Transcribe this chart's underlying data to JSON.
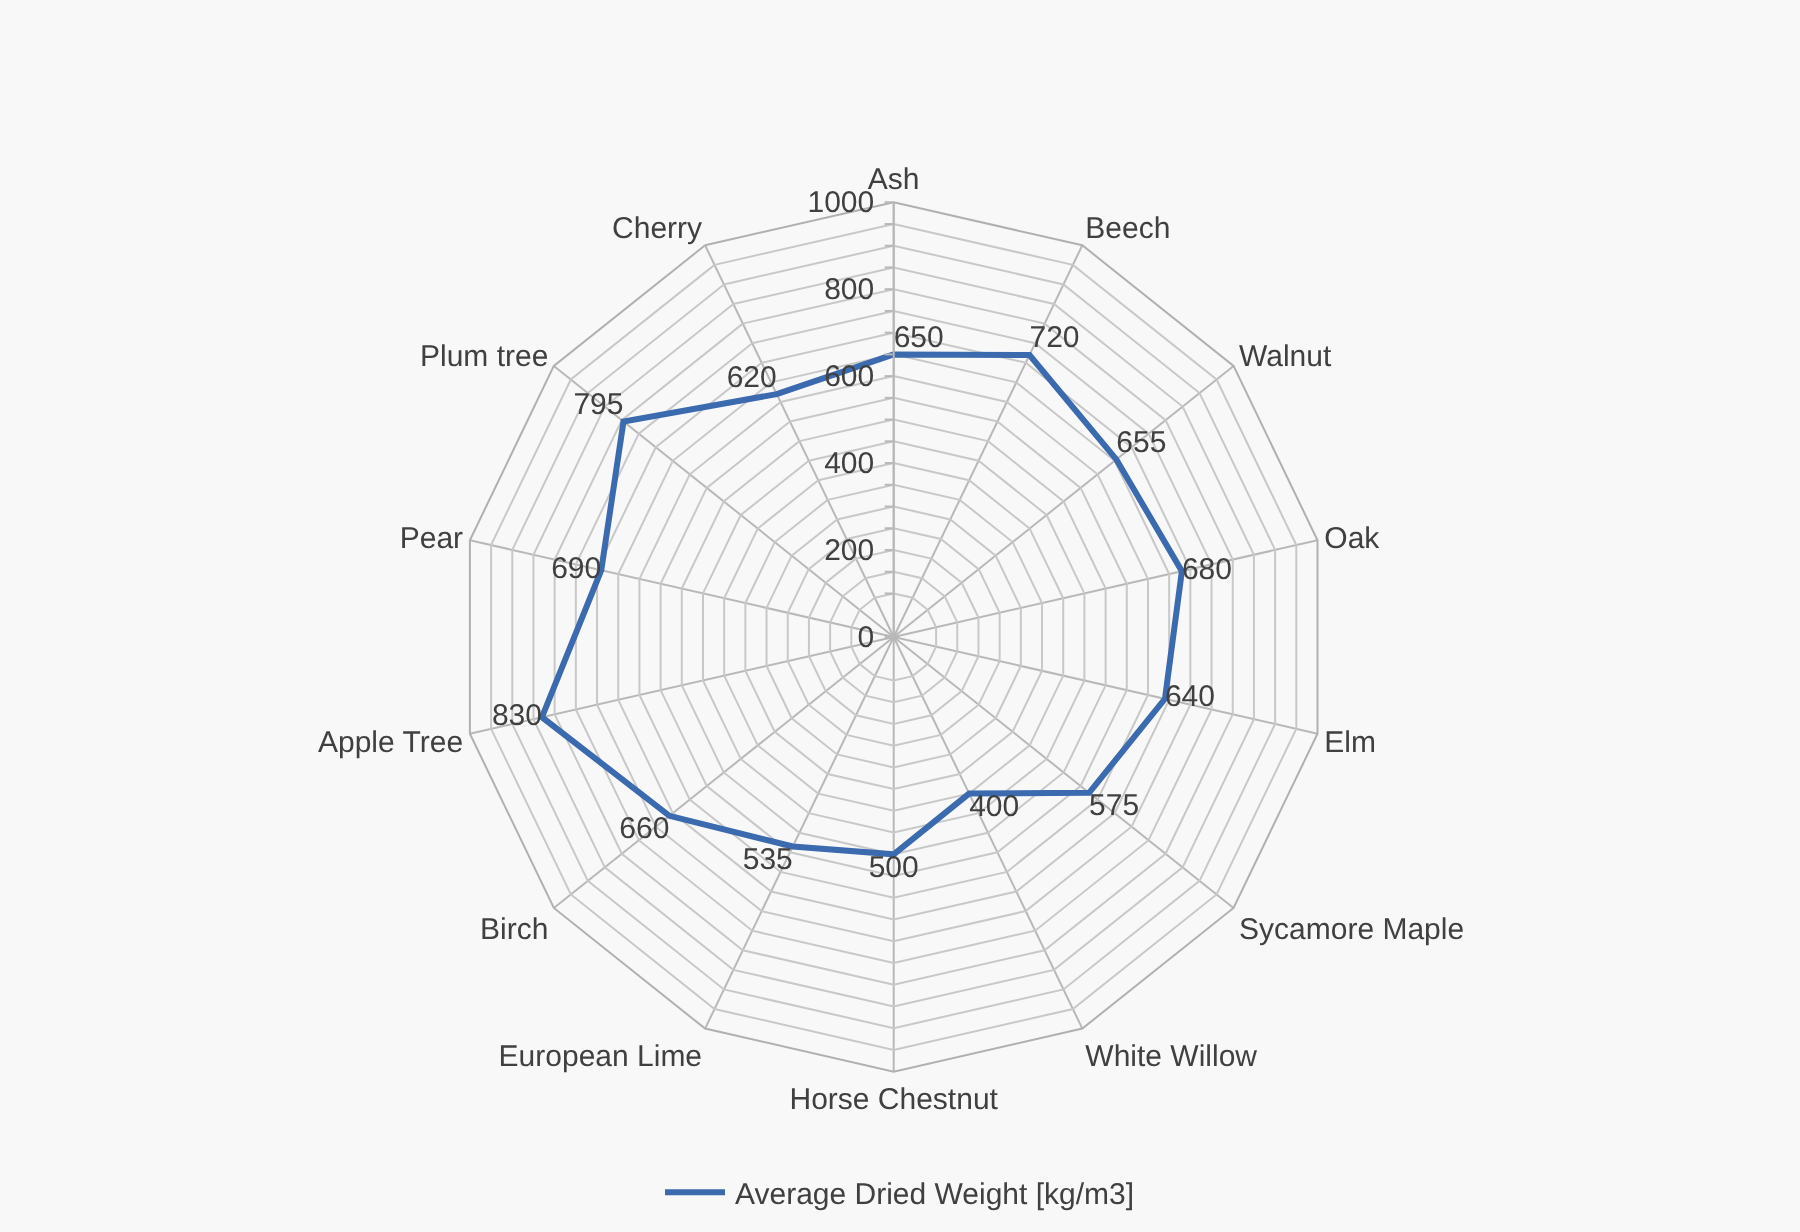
{
  "chart_data": {
    "type": "radar",
    "categories": [
      "Ash",
      "Beech",
      "Walnut",
      "Oak",
      "Elm",
      "Sycamore Maple",
      "White Willow",
      "Horse Chestnut",
      "European Lime",
      "Birch",
      "Apple Tree",
      "Pear",
      "Plum tree",
      "Cherry"
    ],
    "series": [
      {
        "name": "Average Dried Weight [kg/m3]",
        "color": "#3c6aae",
        "values": [
          650,
          720,
          655,
          680,
          640,
          575,
          400,
          500,
          535,
          660,
          830,
          690,
          795,
          620
        ]
      }
    ],
    "ylim": [
      0,
      1000
    ],
    "yticks": [
      0,
      200,
      400,
      600,
      800,
      1000
    ],
    "grid": true,
    "legend": "bottom",
    "data_labels": true,
    "marker": "none",
    "line_style": "solid"
  }
}
